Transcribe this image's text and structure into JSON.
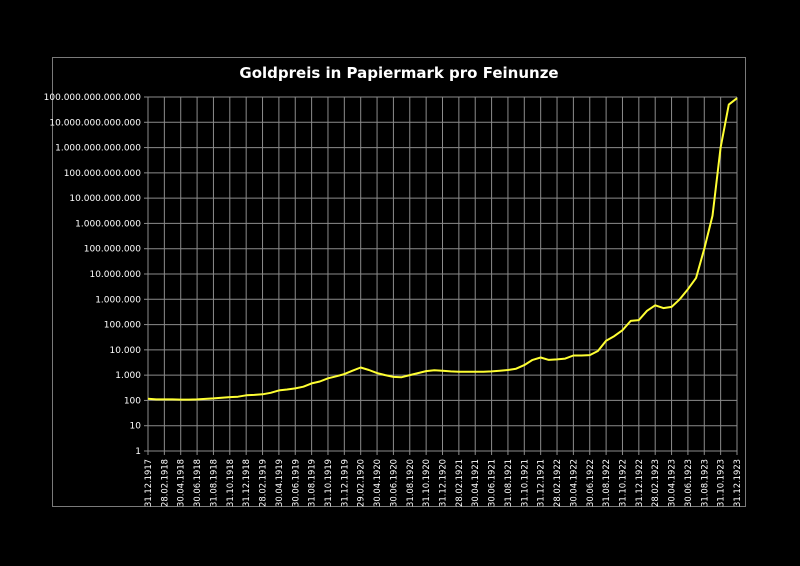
{
  "chart_data": {
    "type": "line",
    "title": "Goldpreis in Papiermark pro Feinunze",
    "xlabel": "",
    "ylabel": "",
    "yscale": "log",
    "ylim": [
      1,
      100000000000000
    ],
    "grid": true,
    "legend": "none",
    "line_color": "#ffff33",
    "background": "#000000",
    "y_ticks": [
      "1",
      "10",
      "100",
      "1.000",
      "10.000",
      "100.000",
      "1.000.000",
      "10.000.000",
      "100.000.000",
      "1.000.000.000",
      "10.000.000.000",
      "100.000.000.000",
      "1.000.000.000.000",
      "10.000.000.000.000",
      "100.000.000.000.000"
    ],
    "x_tick_labels": [
      "31.12.1917",
      "28.02.1918",
      "30.04.1918",
      "30.06.1918",
      "31.08.1918",
      "31.10.1918",
      "31.12.1918",
      "28.02.1919",
      "30.04.1919",
      "30.06.1919",
      "31.08.1919",
      "31.10.1919",
      "31.12.1919",
      "29.02.1920",
      "30.04.1920",
      "30.06.1920",
      "31.08.1920",
      "31.10.1920",
      "31.12.1920",
      "28.02.1921",
      "30.04.1921",
      "30.06.1921",
      "31.08.1921",
      "31.10.1921",
      "31.12.1921",
      "28.02.1922",
      "30.04.1922",
      "30.06.1922",
      "31.08.1922",
      "31.10.1922",
      "31.12.1922",
      "28.02.1923",
      "30.04.1923",
      "30.06.1923",
      "31.08.1923",
      "31.10.1923",
      "31.12.1923"
    ],
    "series": [
      {
        "name": "Goldpreis",
        "x": [
          "31.12.1917",
          "31.01.1918",
          "28.02.1918",
          "31.03.1918",
          "30.04.1918",
          "31.05.1918",
          "30.06.1918",
          "31.07.1918",
          "31.08.1918",
          "30.09.1918",
          "31.10.1918",
          "30.11.1918",
          "31.12.1918",
          "31.01.1919",
          "28.02.1919",
          "31.03.1919",
          "30.04.1919",
          "31.05.1919",
          "30.06.1919",
          "31.07.1919",
          "31.08.1919",
          "30.09.1919",
          "31.10.1919",
          "30.11.1919",
          "31.12.1919",
          "31.01.1920",
          "29.02.1920",
          "31.03.1920",
          "30.04.1920",
          "31.05.1920",
          "30.06.1920",
          "31.07.1920",
          "31.08.1920",
          "30.09.1920",
          "31.10.1920",
          "30.11.1920",
          "31.12.1920",
          "31.01.1921",
          "28.02.1921",
          "31.03.1921",
          "30.04.1921",
          "31.05.1921",
          "30.06.1921",
          "31.07.1921",
          "31.08.1921",
          "30.09.1921",
          "31.10.1921",
          "30.11.1921",
          "31.12.1921",
          "31.01.1922",
          "28.02.1922",
          "31.03.1922",
          "30.04.1922",
          "31.05.1922",
          "30.06.1922",
          "31.07.1922",
          "31.08.1922",
          "30.09.1922",
          "31.10.1922",
          "30.11.1922",
          "31.12.1922",
          "31.01.1923",
          "28.02.1923",
          "31.03.1923",
          "30.04.1923",
          "31.05.1923",
          "30.06.1923",
          "31.07.1923",
          "31.08.1923",
          "30.09.1923",
          "31.10.1923",
          "30.11.1923",
          "31.12.1923"
        ],
        "values": [
          116,
          110,
          110,
          110,
          108,
          108,
          110,
          115,
          120,
          128,
          135,
          140,
          160,
          165,
          175,
          200,
          250,
          270,
          300,
          350,
          470,
          560,
          750,
          900,
          1100,
          1500,
          2000,
          1600,
          1200,
          1000,
          850,
          830,
          1000,
          1200,
          1450,
          1550,
          1500,
          1400,
          1350,
          1350,
          1350,
          1350,
          1400,
          1500,
          1600,
          1800,
          2500,
          4000,
          5000,
          4000,
          4200,
          4500,
          6000,
          6000,
          6200,
          9000,
          23000,
          35000,
          60000,
          140000,
          150000,
          350000,
          580000,
          450000,
          500000,
          1000000,
          2500000,
          7000000,
          100000000,
          2000000000,
          1000000000000,
          50000000000000,
          90000000000000
        ]
      }
    ]
  }
}
